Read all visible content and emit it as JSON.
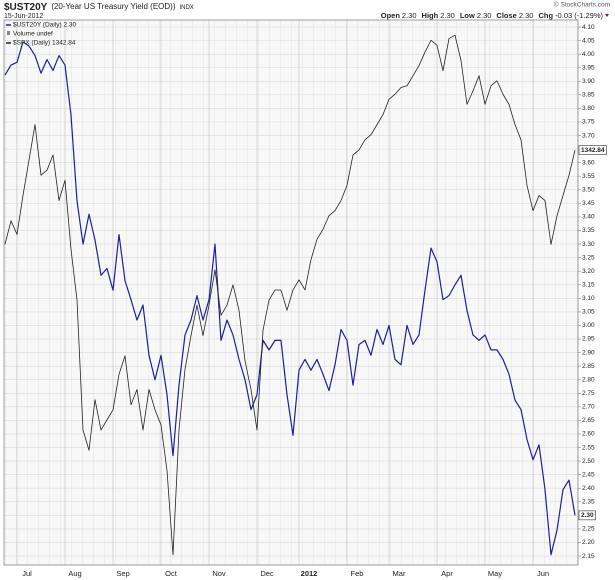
{
  "header": {
    "symbol": "$UST20Y",
    "title": "(20-Year US Treasury Yield (EOD))",
    "exchange": "INDX",
    "date": "15-Jun-2012",
    "copyright": "© StockCharts.com",
    "quote": [
      {
        "label": "Open",
        "value": "2.30"
      },
      {
        "label": "High",
        "value": "2.30"
      },
      {
        "label": "Low",
        "value": "2.30"
      },
      {
        "label": "Close",
        "value": "2.30"
      },
      {
        "label": "Chg",
        "value": "-0.03 (-1.29%)"
      }
    ]
  },
  "chart_data": {
    "type": "line",
    "categories": [
      null,
      null,
      "Jul",
      null,
      null,
      null,
      null,
      null,
      null,
      null,
      "Aug",
      null,
      null,
      null,
      null,
      null,
      null,
      null,
      "Sep",
      null,
      null,
      null,
      null,
      null,
      null,
      null,
      "Oct",
      null,
      null,
      null,
      null,
      null,
      null,
      null,
      "Nov",
      null,
      null,
      null,
      null,
      null,
      null,
      null,
      "Dec",
      null,
      null,
      null,
      null,
      null,
      null,
      "2012",
      null,
      null,
      null,
      null,
      null,
      null,
      null,
      "Feb",
      null,
      null,
      null,
      null,
      null,
      null,
      "Mar",
      null,
      null,
      null,
      null,
      null,
      null,
      null,
      "Apr",
      null,
      null,
      null,
      null,
      null,
      null,
      null,
      "May",
      null,
      null,
      null,
      null,
      null,
      null,
      null,
      "Jun",
      null,
      null,
      null,
      null,
      null,
      null,
      null
    ],
    "series": [
      {
        "name": "$UST20Y (Daily) 2.30",
        "color": "#1f1f9e",
        "axis": "y",
        "last_label": "2.30",
        "values": [
          3.923,
          3.96,
          3.97,
          4.045,
          4.03,
          3.995,
          3.93,
          3.98,
          3.94,
          3.995,
          3.96,
          3.775,
          3.46,
          3.3,
          3.41,
          3.315,
          3.185,
          3.21,
          3.13,
          3.335,
          3.165,
          3.095,
          3.02,
          3.075,
          2.89,
          2.8,
          2.89,
          2.745,
          2.52,
          2.78,
          2.965,
          3.02,
          3.11,
          3.02,
          3.095,
          3.3,
          2.945,
          3.02,
          2.965,
          2.875,
          2.8,
          2.69,
          2.745,
          2.945,
          2.91,
          2.945,
          2.945,
          2.745,
          2.595,
          2.835,
          2.875,
          2.835,
          2.875,
          2.82,
          2.76,
          2.855,
          2.985,
          2.945,
          2.78,
          2.93,
          2.945,
          2.89,
          2.985,
          2.93,
          3.0,
          2.875,
          2.855,
          3.0,
          2.93,
          2.965,
          3.13,
          3.285,
          3.235,
          3.095,
          3.11,
          3.15,
          3.185,
          3.055,
          2.965,
          2.945,
          2.965,
          2.91,
          2.91,
          2.875,
          2.82,
          2.725,
          2.69,
          2.58,
          2.505,
          2.56,
          2.395,
          2.155,
          2.245,
          2.395,
          2.43,
          2.3
        ]
      },
      {
        "name": "$SPX (Daily) 1342.84",
        "color": "#222222",
        "axis": "y2",
        "last_label": "1342.84",
        "values": [
          1287,
          1301,
          1293,
          1316,
          1337,
          1358,
          1328,
          1331,
          1340,
          1313,
          1325,
          1284,
          1254,
          1177,
          1165,
          1195,
          1177,
          1183,
          1189,
          1210,
          1221,
          1192,
          1201,
          1177,
          1201,
          1189,
          1180,
          1153,
          1103,
          1177,
          1213,
          1233,
          1251,
          1233,
          1251,
          1272,
          1245,
          1251,
          1263,
          1248,
          1218,
          1201,
          1177,
          1236,
          1254,
          1260,
          1260,
          1248,
          1260,
          1266,
          1260,
          1278,
          1290,
          1296,
          1304,
          1307,
          1313,
          1322,
          1340,
          1343,
          1349,
          1352,
          1358,
          1364,
          1373,
          1376,
          1380,
          1381,
          1387,
          1393,
          1401,
          1408,
          1405,
          1390,
          1409,
          1411,
          1396,
          1370,
          1378,
          1387,
          1370,
          1381,
          1384,
          1376,
          1370,
          1358,
          1349,
          1322,
          1307,
          1316,
          1313,
          1287,
          1304,
          1316,
          1328,
          1342.84
        ]
      }
    ],
    "extra_legend": "Volume undef",
    "ylim": [
      2.117,
      4.126
    ],
    "yticks": [
      2.15,
      {
        "value": 2.2,
        "label": "2.20"
      },
      2.25,
      {
        "value": 2.3,
        "label": "2.30"
      },
      2.35,
      {
        "value": 2.4,
        "label": "2.40"
      },
      2.45,
      {
        "value": 2.5,
        "label": "2.50"
      },
      2.55,
      {
        "value": 2.6,
        "label": "2.60"
      },
      2.65,
      {
        "value": 2.7,
        "label": "2.70"
      },
      2.75,
      {
        "value": 2.8,
        "label": "2.80"
      },
      2.85,
      {
        "value": 2.9,
        "label": "2.90"
      },
      2.95,
      {
        "value": 3.0,
        "label": "3.00"
      },
      3.05,
      {
        "value": 3.1,
        "label": "3.10"
      },
      3.15,
      {
        "value": 3.2,
        "label": "3.20"
      },
      3.25,
      {
        "value": 3.3,
        "label": "3.30"
      },
      3.35,
      {
        "value": 3.4,
        "label": "3.40"
      },
      3.45,
      {
        "value": 3.5,
        "label": "3.50"
      },
      3.55,
      {
        "value": 3.6,
        "label": "3.60"
      },
      3.65,
      {
        "value": 3.7,
        "label": "3.70"
      },
      3.75,
      {
        "value": 3.8,
        "label": "3.80"
      },
      3.85,
      {
        "value": 3.9,
        "label": "3.90"
      },
      3.95,
      {
        "value": 4.0,
        "label": "4.00"
      },
      4.05,
      {
        "value": 4.1,
        "label": "4.10"
      }
    ],
    "y2lim": [
      1097,
      1420
    ],
    "grid": true
  }
}
